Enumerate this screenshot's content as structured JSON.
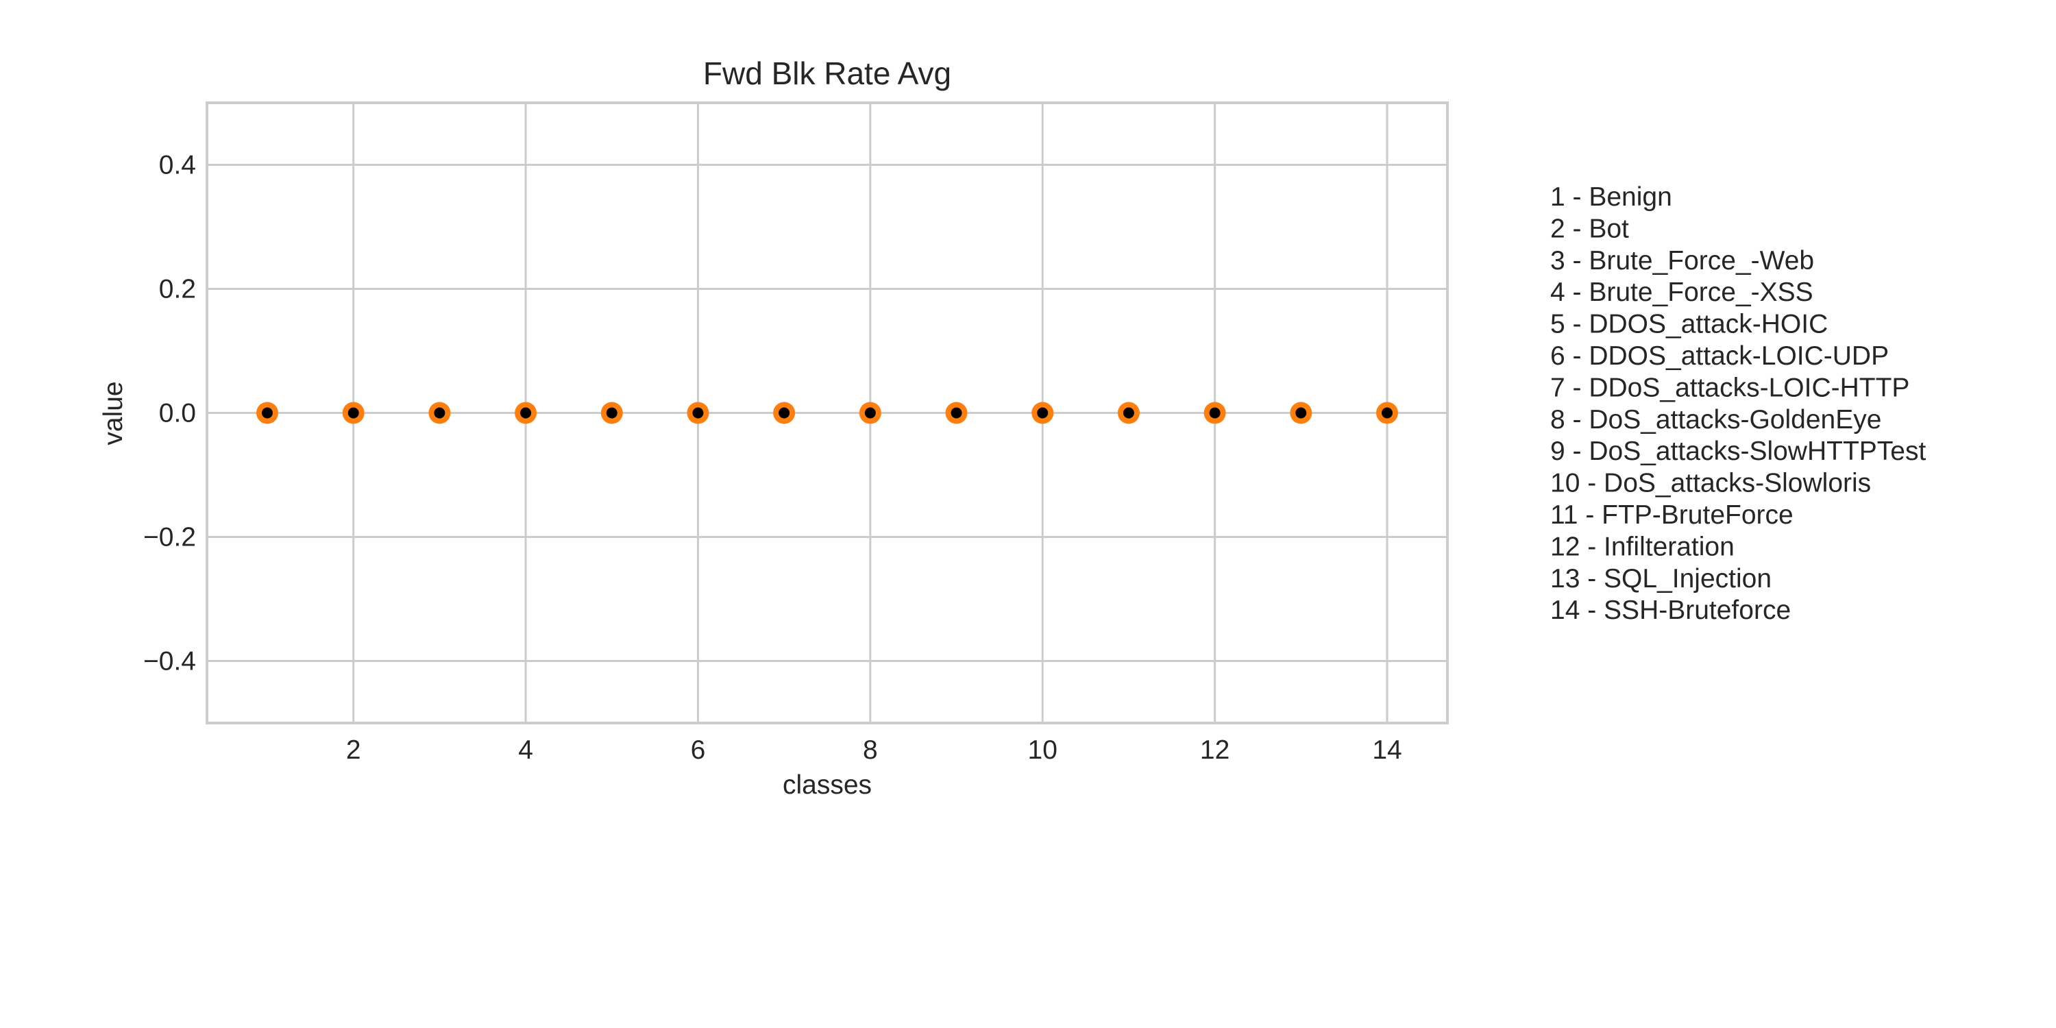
{
  "chart_data": {
    "type": "scatter",
    "title": "Fwd Blk Rate Avg",
    "xlabel": "classes",
    "ylabel": "value",
    "xlim": [
      0.3,
      14.7
    ],
    "ylim": [
      -0.5,
      0.5
    ],
    "x_ticks": [
      2,
      4,
      6,
      8,
      10,
      12,
      14
    ],
    "y_ticks": [
      0.4,
      0.2,
      0.0,
      -0.2,
      -0.4
    ],
    "y_tick_labels": [
      "0.4",
      "0.2",
      "0.0",
      "−0.2",
      "−0.4"
    ],
    "grid": true,
    "series": [
      {
        "x": [
          1,
          2,
          3,
          4,
          5,
          6,
          7,
          8,
          9,
          10,
          11,
          12,
          13,
          14
        ],
        "y": [
          0,
          0,
          0,
          0,
          0,
          0,
          0,
          0,
          0,
          0,
          0,
          0,
          0,
          0
        ],
        "marker_color": "#ff7f0e",
        "inner_color": "#000000"
      }
    ],
    "legend_placement": "right",
    "legend_entries": [
      "1 - Benign",
      "2 - Bot",
      "3 - Brute_Force_-Web",
      "4 - Brute_Force_-XSS",
      "5 - DDOS_attack-HOIC",
      "6 - DDOS_attack-LOIC-UDP",
      "7 - DDoS_attacks-LOIC-HTTP",
      "8 - DoS_attacks-GoldenEye",
      "9 - DoS_attacks-SlowHTTPTest",
      "10 - DoS_attacks-Slowloris",
      "11 - FTP-BruteForce",
      "12 - Infilteration",
      "13 - SQL_Injection",
      "14 - SSH-Bruteforce"
    ]
  }
}
